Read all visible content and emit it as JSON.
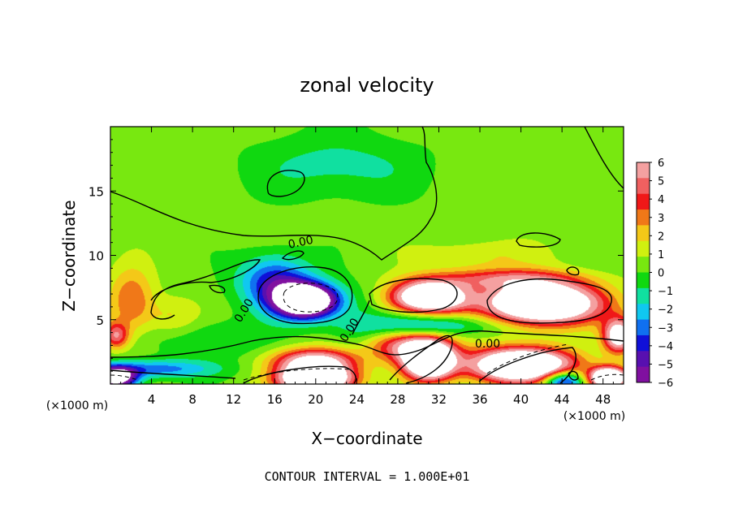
{
  "chart_data": {
    "type": "heatmap",
    "title": "zonal velocity",
    "xlabel": "X−coordinate",
    "ylabel": "Z−coordinate",
    "x_unit_label": "(×1000 m)",
    "z_unit_label": "(×1000 m)",
    "xlim": [
      0,
      50
    ],
    "ylim": [
      0,
      20
    ],
    "x_ticks": [
      4,
      8,
      12,
      16,
      20,
      24,
      28,
      32,
      36,
      40,
      44,
      48
    ],
    "y_ticks": [
      5,
      10,
      15
    ],
    "colorbar": {
      "ticks": [
        6,
        5,
        4,
        3,
        2,
        1,
        0,
        -1,
        -2,
        -3,
        -4,
        -5,
        -6
      ],
      "tick_labels": [
        "6",
        "5",
        "4",
        "3",
        "2",
        "1",
        "0",
        "−1",
        "−2",
        "−3",
        "−4",
        "−5",
        "−6"
      ],
      "colors": [
        "#f4a0a0",
        "#f06060",
        "#f01818",
        "#f07818",
        "#f4c818",
        "#d0f010",
        "#78e810",
        "#10d810",
        "#10e0a0",
        "#10c8f0",
        "#1070f0",
        "#1010d8",
        "#5810b0",
        "#8010a0"
      ]
    },
    "contour_labels": [
      "0.00",
      "0.00",
      "0.00",
      "0.00"
    ],
    "footer": "CONTOUR INTERVAL = 1.000E+01",
    "features": [
      {
        "x": 2,
        "z": 6.5,
        "value": 3.2,
        "sx": 2.2,
        "sz": 2.5
      },
      {
        "x": 0.5,
        "z": 3.8,
        "value": 4.5,
        "sx": 1.2,
        "sz": 1.0
      },
      {
        "x": 6,
        "z": 5.2,
        "value": 1.5,
        "sx": 2.5,
        "sz": 1.5
      },
      {
        "x": 22,
        "z": 17,
        "value": -1.6,
        "sx": 8,
        "sz": 2.5
      },
      {
        "x": 19,
        "z": 6.5,
        "value": -12,
        "sx": 3.0,
        "sz": 1.3
      },
      {
        "x": 16,
        "z": 8.0,
        "value": -4.5,
        "sx": 3.5,
        "sz": 2.0
      },
      {
        "x": 31,
        "z": 6.8,
        "value": 11,
        "sx": 3.5,
        "sz": 1.2
      },
      {
        "x": 42,
        "z": 6.3,
        "value": 12,
        "sx": 5.5,
        "sz": 1.6
      },
      {
        "x": 38,
        "z": 8.2,
        "value": 3.5,
        "sx": 7,
        "sz": 0.8
      },
      {
        "x": 36,
        "z": 10,
        "value": 1.4,
        "sx": 6,
        "sz": 1.2
      },
      {
        "x": 31,
        "z": 4.6,
        "value": -3.0,
        "sx": 7,
        "sz": 0.9
      },
      {
        "x": 20,
        "z": 1.8,
        "value": 7,
        "sx": 4,
        "sz": 1.0
      },
      {
        "x": 20,
        "z": 0.4,
        "value": 12,
        "sx": 3.5,
        "sz": 1.0
      },
      {
        "x": 31,
        "z": 1.8,
        "value": 12,
        "sx": 2.4,
        "sz": 1.4
      },
      {
        "x": 29,
        "z": 3.0,
        "value": 5,
        "sx": 4,
        "sz": 1.2
      },
      {
        "x": 40,
        "z": 1.5,
        "value": 12,
        "sx": 5,
        "sz": 1.3
      },
      {
        "x": 44,
        "z": 0.3,
        "value": -6,
        "sx": 2.0,
        "sz": 0.8
      },
      {
        "x": 48.5,
        "z": 0.5,
        "value": 12,
        "sx": 1.8,
        "sz": 0.8
      },
      {
        "x": 49.5,
        "z": 3.8,
        "value": 8,
        "sx": 1.5,
        "sz": 1.3
      },
      {
        "x": 4,
        "z": 1.2,
        "value": -3.5,
        "sx": 6,
        "sz": 0.7
      },
      {
        "x": 0.5,
        "z": 0.5,
        "value": -9,
        "sx": 2.0,
        "sz": 0.8
      },
      {
        "x": 10,
        "z": 3.5,
        "value": -1.3,
        "sx": 6,
        "sz": 1.5
      },
      {
        "x": 24,
        "z": 4.5,
        "value": -1.0,
        "sx": 2.5,
        "sz": 3.0
      }
    ]
  }
}
